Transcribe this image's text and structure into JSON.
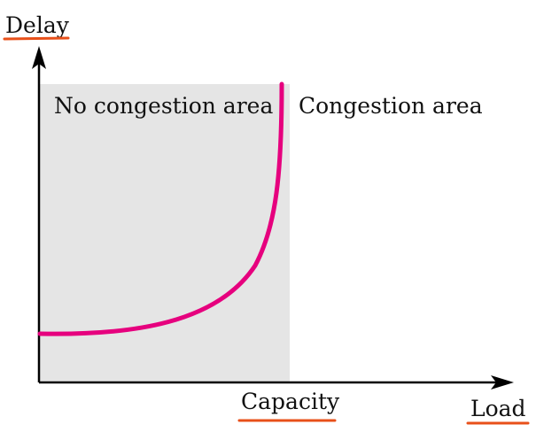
{
  "labels": {
    "y_axis": "Delay",
    "x_axis": "Load",
    "capacity": "Capacity",
    "no_congestion": "No congestion area",
    "congestion": "Congestion area"
  },
  "colors": {
    "curve": "#e6007e",
    "shade": "#e5e5e5",
    "underline": "#e8501a",
    "axis": "#000000"
  },
  "chart_data": {
    "type": "line",
    "title": "",
    "xlabel": "Load",
    "ylabel": "Delay",
    "shaded_region": "No congestion area",
    "unshaded_region": "Congestion area",
    "vertical_marker": "Capacity",
    "curve": "delay rises slowly with load, then sharply toward capacity"
  }
}
